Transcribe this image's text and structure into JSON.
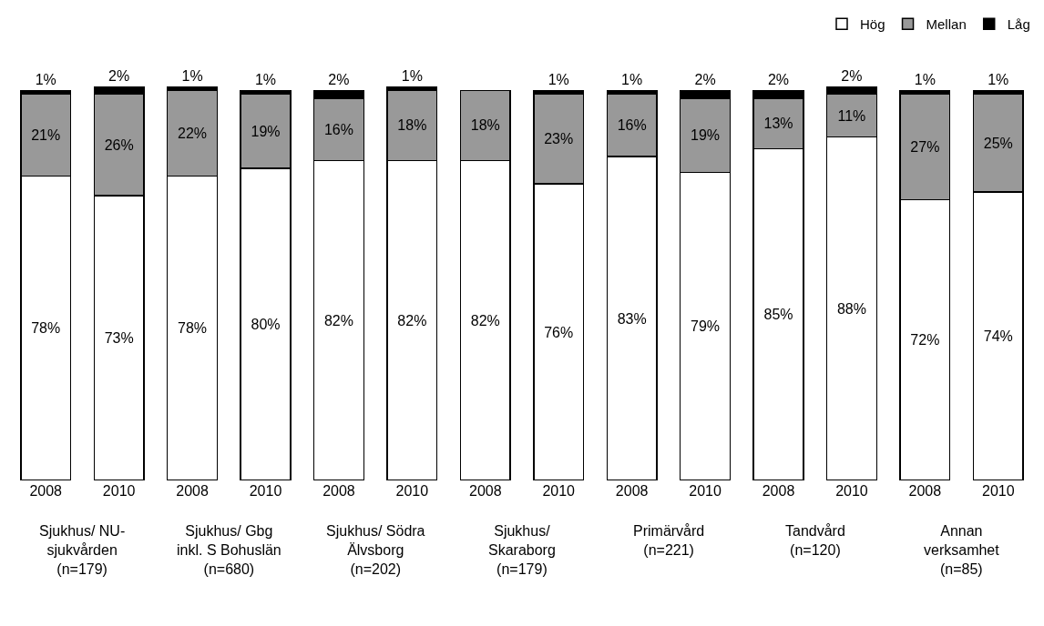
{
  "chart_data": {
    "type": "bar",
    "stacked": true,
    "categories": [
      "2008",
      "2010",
      "2008",
      "2010",
      "2008",
      "2010",
      "2008",
      "2010",
      "2008",
      "2010",
      "2008",
      "2010",
      "2008",
      "2010"
    ],
    "series": [
      {
        "name": "Hög",
        "color": "#ffffff",
        "values": [
          78,
          73,
          78,
          80,
          82,
          82,
          82,
          76,
          83,
          79,
          85,
          88,
          72,
          74
        ],
        "value_labels": [
          "78%",
          "73%",
          "78%",
          "80%",
          "82%",
          "82%",
          "82%",
          "76%",
          "83%",
          "79%",
          "85%",
          "88%",
          "72%",
          "74%"
        ]
      },
      {
        "name": "Mellan",
        "color": "#999999",
        "values": [
          21,
          26,
          22,
          19,
          16,
          18,
          18,
          23,
          16,
          19,
          13,
          11,
          27,
          25
        ],
        "value_labels": [
          "21%",
          "26%",
          "22%",
          "19%",
          "16%",
          "18%",
          "18%",
          "23%",
          "16%",
          "19%",
          "13%",
          "11%",
          "27%",
          "25%"
        ]
      },
      {
        "name": "Låg",
        "color": "#000000",
        "values": [
          1,
          2,
          1,
          1,
          2,
          1,
          null,
          1,
          1,
          2,
          2,
          2,
          1,
          1
        ],
        "value_labels": [
          "1%",
          "2%",
          "1%",
          "1%",
          "2%",
          "1%",
          null,
          "1%",
          "1%",
          "2%",
          "2%",
          "2%",
          "1%",
          "1%"
        ]
      }
    ],
    "annotations": [
      "Sjukhus/ NU-\nsjukvården\n(n=179)",
      "Sjukhus/ Gbg\ninkl. S Bohuslän\n(n=680)",
      "Sjukhus/ Södra\nÄlvsborg\n(n=202)",
      "Sjukhus/\nSkaraborg\n(n=179)",
      "Primärvård\n(n=221)",
      "Tandvård\n(n=120)",
      "Annan\nverksamhet\n(n=85)"
    ],
    "ylim": [
      0,
      101
    ],
    "tick_labels": "x",
    "legend": "top right"
  }
}
